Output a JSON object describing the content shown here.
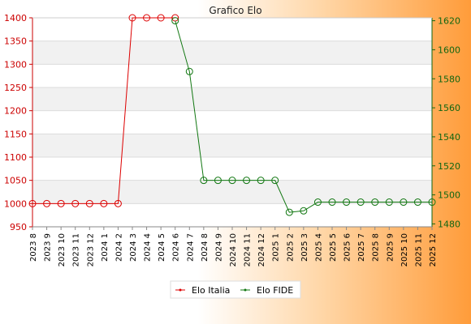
{
  "chart_data": {
    "type": "line",
    "title": "Grafico Elo",
    "categories": [
      "2023 8",
      "2023 9",
      "2023 10",
      "2023 11",
      "2023 12",
      "2024 1",
      "2024 2",
      "2024 3",
      "2024 4",
      "2024 5",
      "2024 6",
      "2024 7",
      "2024 8",
      "2024 9",
      "2024 10",
      "2024 11",
      "2024 12",
      "2025 1",
      "2025 2",
      "2025 3",
      "2025 4",
      "2025 5",
      "2025 6",
      "2025 7",
      "2025 8",
      "2025 9",
      "2025 10",
      "2025 11",
      "2025 12"
    ],
    "left_axis": {
      "range": [
        950,
        1400
      ],
      "ticks": [
        950,
        1000,
        1050,
        1100,
        1150,
        1200,
        1250,
        1300,
        1350,
        1400
      ],
      "color": "#cc0000"
    },
    "right_axis": {
      "range": [
        1478,
        1622
      ],
      "ticks": [
        1480,
        1500,
        1520,
        1540,
        1560,
        1580,
        1600,
        1620
      ],
      "color": "#116611"
    },
    "series": [
      {
        "name": "Elo Italia",
        "axis": "left",
        "color": "#dd0000",
        "values": [
          1000,
          1000,
          1000,
          1000,
          1000,
          1000,
          1000,
          1400,
          1400,
          1400,
          1400,
          null,
          null,
          null,
          null,
          null,
          null,
          null,
          null,
          null,
          null,
          null,
          null,
          null,
          null,
          null,
          null,
          null,
          null
        ]
      },
      {
        "name": "Elo FIDE",
        "axis": "right",
        "color": "#117711",
        "values": [
          null,
          null,
          null,
          null,
          null,
          null,
          null,
          null,
          null,
          null,
          1620,
          1585,
          1510,
          1510,
          1510,
          1510,
          1510,
          1510,
          1488,
          1489,
          1495,
          1495,
          1495,
          1495,
          1495,
          1495,
          1495,
          1495,
          1495
        ]
      }
    ],
    "grid": true,
    "legend_position": "bottom"
  }
}
